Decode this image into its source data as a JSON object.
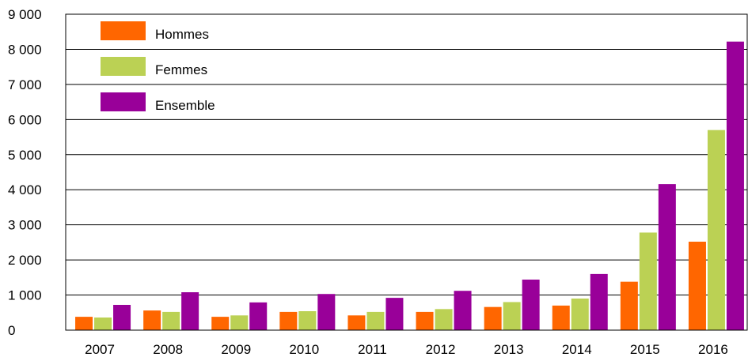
{
  "chart_data": {
    "type": "bar",
    "title": "",
    "xlabel": "",
    "ylabel": "",
    "categories": [
      "2007",
      "2008",
      "2009",
      "2010",
      "2011",
      "2012",
      "2013",
      "2014",
      "2015",
      "2016"
    ],
    "series": [
      {
        "name": "Hommes",
        "color": "#ff6600",
        "values": [
          380,
          560,
          380,
          520,
          420,
          520,
          660,
          700,
          1380,
          2520
        ]
      },
      {
        "name": "Femmes",
        "color": "#bbd154",
        "values": [
          360,
          520,
          420,
          540,
          520,
          600,
          800,
          900,
          2780,
          5700
        ]
      },
      {
        "name": "Ensemble",
        "color": "#990099",
        "values": [
          720,
          1080,
          790,
          1030,
          920,
          1120,
          1440,
          1600,
          4160,
          8220
        ]
      }
    ],
    "ylim": [
      0,
      9000
    ],
    "yticks": [
      {
        "value": 0,
        "label": "0"
      },
      {
        "value": 1000,
        "label": "1 000"
      },
      {
        "value": 2000,
        "label": "2 000"
      },
      {
        "value": 3000,
        "label": "3 000"
      },
      {
        "value": 4000,
        "label": "4 000"
      },
      {
        "value": 5000,
        "label": "5 000"
      },
      {
        "value": 6000,
        "label": "6 000"
      },
      {
        "value": 7000,
        "label": "7 000"
      },
      {
        "value": 8000,
        "label": "8 000"
      },
      {
        "value": 9000,
        "label": "9 000"
      }
    ],
    "grid": true,
    "legend_position": "top-left"
  }
}
